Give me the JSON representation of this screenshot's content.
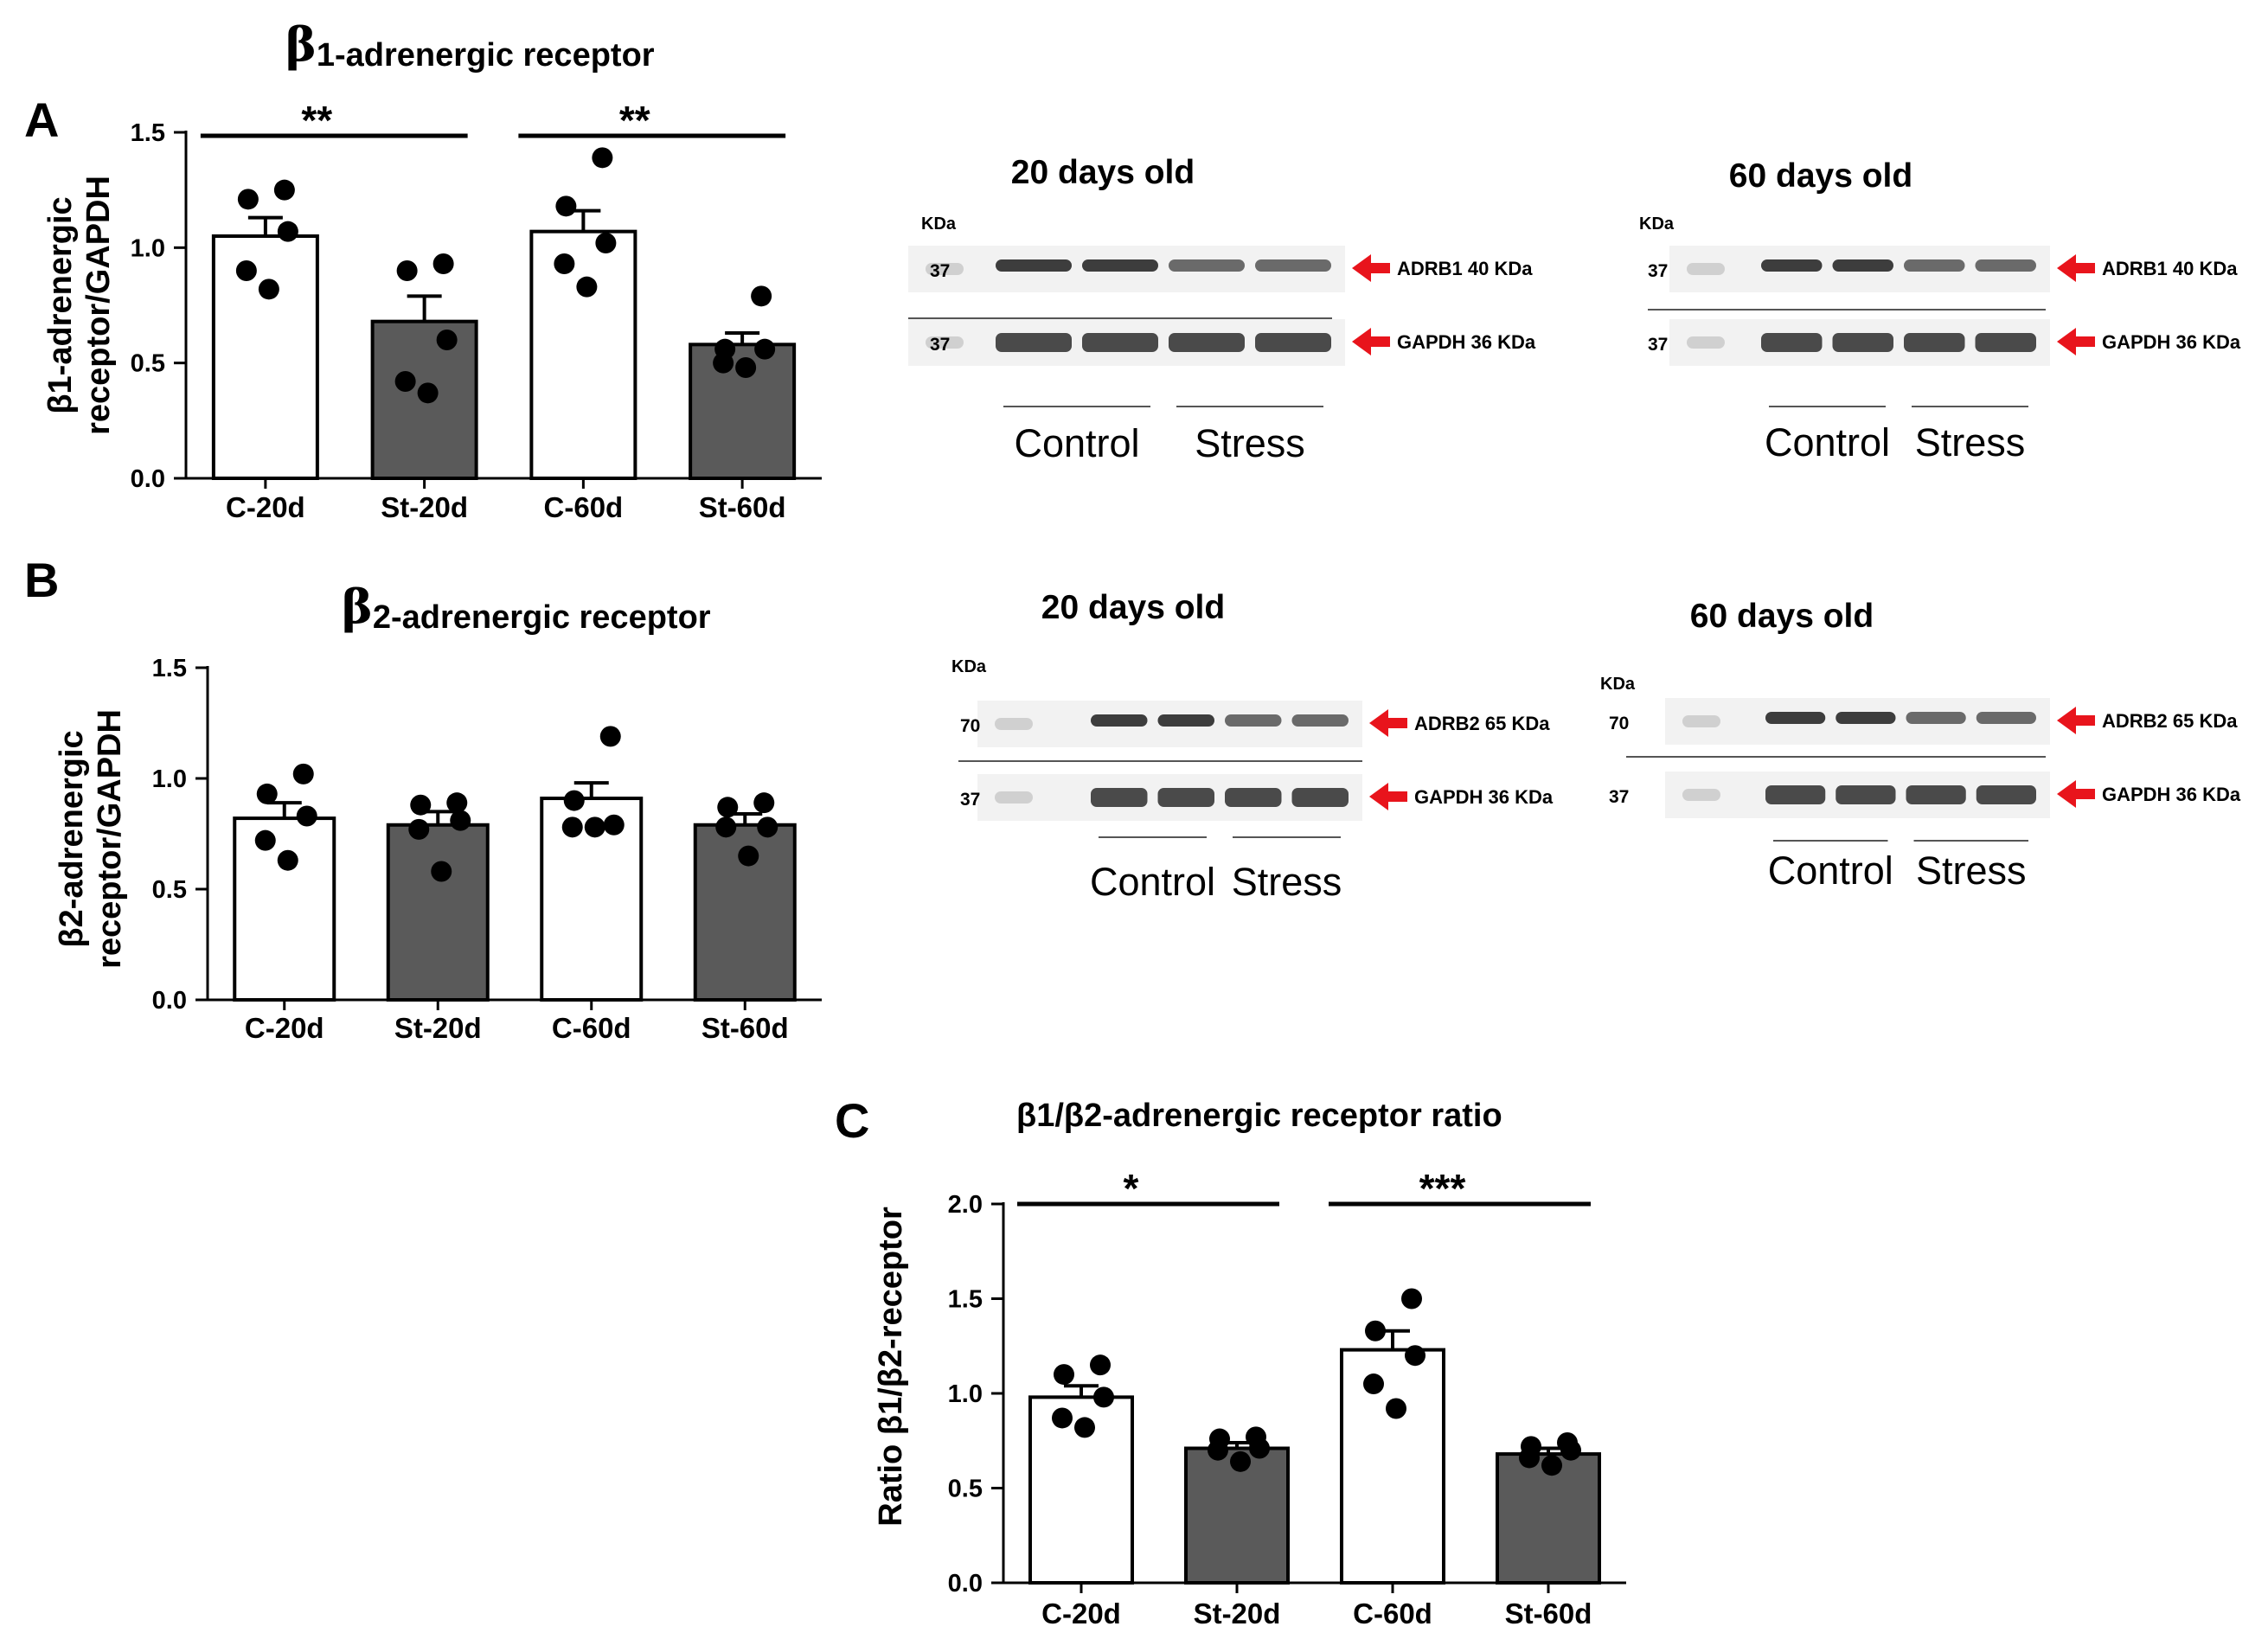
{
  "panels": {
    "a": "A",
    "b": "B",
    "c": "C"
  },
  "chart_data": [
    {
      "id": "A",
      "type": "bar",
      "title_symbol": "β",
      "title": "1-adrenergic receptor",
      "ylabel_line1": "β1-adrenergic",
      "ylabel_line2": "receptor/GAPDH",
      "categories": [
        "C-20d",
        "St-20d",
        "C-60d",
        "St-60d"
      ],
      "values": [
        1.05,
        0.68,
        1.07,
        0.58
      ],
      "errors": [
        0.08,
        0.11,
        0.09,
        0.05
      ],
      "points": [
        [
          1.25,
          1.21,
          1.07,
          0.9,
          0.82
        ],
        [
          0.93,
          0.9,
          0.6,
          0.42,
          0.37
        ],
        [
          1.39,
          1.18,
          1.02,
          0.93,
          0.83
        ],
        [
          0.79,
          0.56,
          0.56,
          0.5,
          0.48
        ]
      ],
      "fills": [
        "#ffffff",
        "#5a5a5a",
        "#ffffff",
        "#5a5a5a"
      ],
      "yticks": [
        "0.0",
        "0.5",
        "1.0",
        "1.5"
      ],
      "ylim": [
        0,
        1.5
      ],
      "significance": [
        {
          "from": 0,
          "to": 1,
          "label": "**"
        },
        {
          "from": 2,
          "to": 3,
          "label": "**"
        }
      ]
    },
    {
      "id": "B",
      "type": "bar",
      "title_symbol": "β",
      "title": "2-adrenergic receptor",
      "ylabel_line1": "β2-adrenergic",
      "ylabel_line2": "receptor/GAPDH",
      "categories": [
        "C-20d",
        "St-20d",
        "C-60d",
        "St-60d"
      ],
      "values": [
        0.82,
        0.79,
        0.91,
        0.79
      ],
      "errors": [
        0.07,
        0.06,
        0.07,
        0.05
      ],
      "points": [
        [
          1.02,
          0.93,
          0.83,
          0.72,
          0.63
        ],
        [
          0.89,
          0.88,
          0.81,
          0.77,
          0.58
        ],
        [
          1.19,
          0.9,
          0.79,
          0.78,
          0.78
        ],
        [
          0.89,
          0.87,
          0.78,
          0.78,
          0.65
        ]
      ],
      "fills": [
        "#ffffff",
        "#5a5a5a",
        "#ffffff",
        "#5a5a5a"
      ],
      "yticks": [
        "0.0",
        "0.5",
        "1.0",
        "1.5"
      ],
      "ylim": [
        0,
        1.5
      ],
      "significance": []
    },
    {
      "id": "C",
      "type": "bar",
      "title": "β1/β2-adrenergic receptor ratio",
      "ylabel": "Ratio β1/β2-receptor",
      "categories": [
        "C-20d",
        "St-20d",
        "C-60d",
        "St-60d"
      ],
      "values": [
        0.98,
        0.71,
        1.23,
        0.68
      ],
      "errors": [
        0.06,
        0.03,
        0.1,
        0.03
      ],
      "points": [
        [
          1.15,
          1.1,
          0.98,
          0.87,
          0.82
        ],
        [
          0.77,
          0.76,
          0.71,
          0.7,
          0.64
        ],
        [
          1.5,
          1.33,
          1.2,
          1.05,
          0.92
        ],
        [
          0.74,
          0.72,
          0.7,
          0.66,
          0.62
        ]
      ],
      "fills": [
        "#ffffff",
        "#5a5a5a",
        "#ffffff",
        "#5a5a5a"
      ],
      "yticks": [
        "0.0",
        "0.5",
        "1.0",
        "1.5",
        "2.0"
      ],
      "ylim": [
        0,
        2.0
      ],
      "significance": [
        {
          "from": 0,
          "to": 1,
          "label": "*"
        },
        {
          "from": 2,
          "to": 3,
          "label": "***"
        }
      ]
    }
  ],
  "blots": [
    {
      "id": "blot-a-20",
      "title": "20 days old",
      "kda": "KDa",
      "rows": [
        {
          "mw": "37",
          "label": "ADRB1 40 KDa"
        },
        {
          "mw": "37",
          "label": "GAPDH 36 KDa"
        }
      ],
      "groups": [
        "Control",
        "Stress"
      ]
    },
    {
      "id": "blot-a-60",
      "title": "60 days old",
      "kda": "KDa",
      "rows": [
        {
          "mw": "37",
          "label": "ADRB1 40 KDa"
        },
        {
          "mw": "37",
          "label": "GAPDH 36 KDa"
        }
      ],
      "groups": [
        "Control",
        "Stress"
      ]
    },
    {
      "id": "blot-b-20",
      "title": "20 days old",
      "kda": "KDa",
      "rows": [
        {
          "mw": "70",
          "label": "ADRB2 65 KDa"
        },
        {
          "mw": "37",
          "label": "GAPDH 36 KDa"
        }
      ],
      "groups": [
        "Control",
        "Stress"
      ]
    },
    {
      "id": "blot-b-60",
      "title": "60 days old",
      "kda": "KDa",
      "rows": [
        {
          "mw": "70",
          "label": "ADRB2 65 KDa"
        },
        {
          "mw": "37",
          "label": "GAPDH 36 KDa"
        }
      ],
      "groups": [
        "Control",
        "Stress"
      ]
    }
  ],
  "colors": {
    "arrow": "#e8141c",
    "bar_dark": "#5a5a5a",
    "bar_light": "#ffffff",
    "band": "#3d3d3d"
  }
}
